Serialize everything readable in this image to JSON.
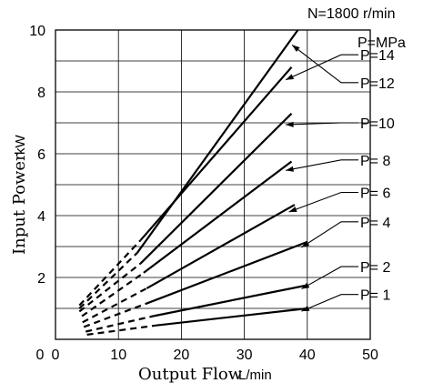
{
  "chart_data": {
    "type": "line",
    "title": "N=1800 r/min",
    "xlabel": "Output Flow",
    "xunit": "L/min",
    "ylabel": "Input Power",
    "yunit": "kW",
    "xlim": [
      0,
      50
    ],
    "ylim": [
      0,
      10
    ],
    "x_ticks": [
      "0",
      "10",
      "20",
      "30",
      "40",
      "50"
    ],
    "y_ticks": [
      "2",
      "4",
      "6",
      "8",
      "10"
    ],
    "grid": true,
    "legend_header": "P=MPa",
    "series": [
      {
        "name": "P=14",
        "dashed": [
          [
            3.8,
            1.1
          ],
          [
            13.5,
            3.2
          ]
        ],
        "solid": [
          [
            13.5,
            3.2
          ],
          [
            37.5,
            8.8
          ]
        ],
        "label_y": 9.2
      },
      {
        "name": "P=12",
        "dashed": [
          [
            3.8,
            1.0
          ],
          [
            13.0,
            2.8
          ]
        ],
        "solid": [
          [
            13.0,
            2.8
          ],
          [
            38.5,
            10.0
          ]
        ],
        "label_y": 8.3
      },
      {
        "name": "P=10",
        "dashed": [
          [
            3.8,
            0.9
          ],
          [
            13.5,
            2.45
          ]
        ],
        "solid": [
          [
            13.5,
            2.45
          ],
          [
            37.5,
            7.3
          ]
        ],
        "label_y": 7.0
      },
      {
        "name": "P=  8",
        "dashed": [
          [
            4.2,
            0.75
          ],
          [
            14.0,
            2.15
          ]
        ],
        "solid": [
          [
            14.0,
            2.15
          ],
          [
            37.5,
            5.75
          ]
        ],
        "label_y": 5.8
      },
      {
        "name": "P=  6",
        "dashed": [
          [
            4.3,
            0.55
          ],
          [
            14.5,
            1.65
          ]
        ],
        "solid": [
          [
            14.5,
            1.65
          ],
          [
            38.0,
            4.35
          ]
        ],
        "label_y": 4.75
      },
      {
        "name": "P=  4",
        "dashed": [
          [
            4.5,
            0.4
          ],
          [
            15.0,
            1.2
          ]
        ],
        "solid": [
          [
            15.0,
            1.2
          ],
          [
            40.0,
            3.15
          ]
        ],
        "label_y": 3.8
      },
      {
        "name": "P=  2",
        "dashed": [
          [
            4.8,
            0.25
          ],
          [
            15.5,
            0.75
          ]
        ],
        "solid": [
          [
            15.5,
            0.75
          ],
          [
            40.0,
            1.75
          ]
        ],
        "label_y": 2.35
      },
      {
        "name": "P=  1",
        "dashed": [
          [
            5.0,
            0.15
          ],
          [
            16.0,
            0.45
          ]
        ],
        "solid": [
          [
            16.0,
            0.45
          ],
          [
            40.0,
            1.0
          ]
        ],
        "label_y": 1.45
      }
    ]
  }
}
